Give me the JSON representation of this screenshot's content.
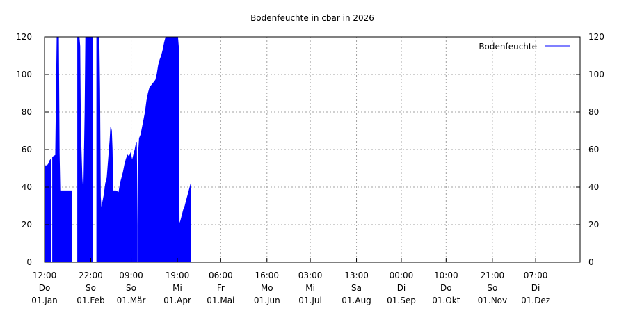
{
  "chart_data": {
    "type": "area",
    "title": "Bodenfeuchte in cbar in 2026",
    "xlabel": "",
    "ylabel": "",
    "ylim": [
      0,
      120
    ],
    "y_ticks": [
      0,
      20,
      40,
      60,
      80,
      100,
      120
    ],
    "xlim": [
      "2026-01-01T12:00",
      "2026-12-31T12:00"
    ],
    "grid": true,
    "legend_position": "top-right",
    "series_color": "#0000ff",
    "x_ticks": [
      {
        "time": "12:00",
        "day": "Do",
        "date": "01.Jan",
        "t": "2026-01-01T12:00"
      },
      {
        "time": "22:00",
        "day": "So",
        "date": "01.Feb",
        "t": "2026-02-01T22:00"
      },
      {
        "time": "09:00",
        "day": "So",
        "date": "01.Mär",
        "t": "2026-03-01T09:00"
      },
      {
        "time": "19:00",
        "day": "Mi",
        "date": "01.Apr",
        "t": "2026-04-01T19:00"
      },
      {
        "time": "06:00",
        "day": "Fr",
        "date": "01.Mai",
        "t": "2026-05-01T06:00"
      },
      {
        "time": "16:00",
        "day": "Mo",
        "date": "01.Jun",
        "t": "2026-06-01T16:00"
      },
      {
        "time": "03:00",
        "day": "Mi",
        "date": "01.Jul",
        "t": "2026-07-01T03:00"
      },
      {
        "time": "13:00",
        "day": "Sa",
        "date": "01.Aug",
        "t": "2026-08-01T13:00"
      },
      {
        "time": "00:00",
        "day": "Di",
        "date": "01.Sep",
        "t": "2026-09-01T00:00"
      },
      {
        "time": "10:00",
        "day": "Do",
        "date": "01.Okt",
        "t": "2026-10-01T10:00"
      },
      {
        "time": "21:00",
        "day": "So",
        "date": "01.Nov",
        "t": "2026-11-01T21:00"
      },
      {
        "time": "07:00",
        "day": "Di",
        "date": "01.Dez",
        "t": "2026-12-01T07:00"
      }
    ],
    "series": [
      {
        "name": "Bodenfeuchte",
        "points": [
          [
            "2026-01-01T12:00",
            53
          ],
          [
            "2026-01-02T00:00",
            51
          ],
          [
            "2026-01-04T00:00",
            52
          ],
          [
            "2026-01-05T00:00",
            54
          ],
          [
            "2026-01-06T00:00",
            55
          ],
          [
            "2026-01-06T12:00",
            null
          ],
          [
            "2026-01-07T00:00",
            56
          ],
          [
            "2026-01-09T00:00",
            57
          ],
          [
            "2026-01-10T00:00",
            120
          ],
          [
            "2026-01-11T00:00",
            120
          ],
          [
            "2026-01-11T12:00",
            58
          ],
          [
            "2026-01-12T00:00",
            38
          ],
          [
            "2026-01-16T00:00",
            38
          ],
          [
            "2026-01-20T00:00",
            38
          ],
          [
            "2026-01-21T00:00",
            null
          ],
          [
            "2026-01-24T00:00",
            120
          ],
          [
            "2026-01-25T00:00",
            120
          ],
          [
            "2026-01-25T12:00",
            115
          ],
          [
            "2026-01-26T00:00",
            70
          ],
          [
            "2026-01-27T00:00",
            45
          ],
          [
            "2026-01-28T00:00",
            32
          ],
          [
            "2026-01-29T00:00",
            80
          ],
          [
            "2026-01-29T12:00",
            120
          ],
          [
            "2026-02-01T00:00",
            120
          ],
          [
            "2026-02-03T00:00",
            120
          ],
          [
            "2026-02-04T00:00",
            null
          ],
          [
            "2026-02-06T00:00",
            120
          ],
          [
            "2026-02-07T12:00",
            120
          ],
          [
            "2026-02-08T00:00",
            92
          ],
          [
            "2026-02-08T12:00",
            35
          ],
          [
            "2026-02-09T00:00",
            28
          ],
          [
            "2026-02-10T00:00",
            32
          ],
          [
            "2026-02-11T00:00",
            36
          ],
          [
            "2026-02-12T00:00",
            42
          ],
          [
            "2026-02-13T00:00",
            45
          ],
          [
            "2026-02-14T00:00",
            55
          ],
          [
            "2026-02-15T00:00",
            65
          ],
          [
            "2026-02-15T12:00",
            72
          ],
          [
            "2026-02-16T00:00",
            70
          ],
          [
            "2026-02-16T12:00",
            60
          ],
          [
            "2026-02-17T00:00",
            34
          ],
          [
            "2026-02-17T12:00",
            38
          ],
          [
            "2026-02-19T00:00",
            38
          ],
          [
            "2026-02-21T00:00",
            37
          ],
          [
            "2026-02-22T00:00",
            42
          ],
          [
            "2026-02-23T00:00",
            45
          ],
          [
            "2026-02-24T00:00",
            48
          ],
          [
            "2026-02-25T00:00",
            52
          ],
          [
            "2026-02-26T00:00",
            55
          ],
          [
            "2026-02-27T00:00",
            57
          ],
          [
            "2026-02-28T00:00",
            56
          ],
          [
            "2026-03-01T00:00",
            58
          ],
          [
            "2026-03-02T00:00",
            54
          ],
          [
            "2026-03-03T00:00",
            57
          ],
          [
            "2026-03-04T00:00",
            60
          ],
          [
            "2026-03-05T00:00",
            64
          ],
          [
            "2026-03-05T12:00",
            20
          ],
          [
            "2026-03-06T00:00",
            null
          ],
          [
            "2026-03-06T12:00",
            60
          ],
          [
            "2026-03-07T00:00",
            66
          ],
          [
            "2026-03-08T00:00",
            68
          ],
          [
            "2026-03-09T00:00",
            72
          ],
          [
            "2026-03-10T00:00",
            76
          ],
          [
            "2026-03-11T00:00",
            80
          ],
          [
            "2026-03-12T00:00",
            86
          ],
          [
            "2026-03-13T00:00",
            90
          ],
          [
            "2026-03-14T00:00",
            93
          ],
          [
            "2026-03-15T00:00",
            94
          ],
          [
            "2026-03-16T00:00",
            95
          ],
          [
            "2026-03-17T00:00",
            96
          ],
          [
            "2026-03-18T00:00",
            97
          ],
          [
            "2026-03-19T00:00",
            100
          ],
          [
            "2026-03-20T00:00",
            105
          ],
          [
            "2026-03-21T00:00",
            108
          ],
          [
            "2026-03-22T00:00",
            110
          ],
          [
            "2026-03-23T00:00",
            113
          ],
          [
            "2026-03-24T00:00",
            117
          ],
          [
            "2026-03-25T00:00",
            120
          ],
          [
            "2026-03-28T00:00",
            120
          ],
          [
            "2026-04-02T00:00",
            120
          ],
          [
            "2026-04-02T12:00",
            115
          ],
          [
            "2026-04-03T00:00",
            20
          ],
          [
            "2026-04-04T00:00",
            22
          ],
          [
            "2026-04-05T00:00",
            25
          ],
          [
            "2026-04-06T00:00",
            28
          ],
          [
            "2026-04-07T00:00",
            30
          ],
          [
            "2026-04-08T00:00",
            33
          ],
          [
            "2026-04-09T00:00",
            36
          ],
          [
            "2026-04-10T00:00",
            39
          ],
          [
            "2026-04-11T00:00",
            42
          ]
        ]
      }
    ]
  }
}
